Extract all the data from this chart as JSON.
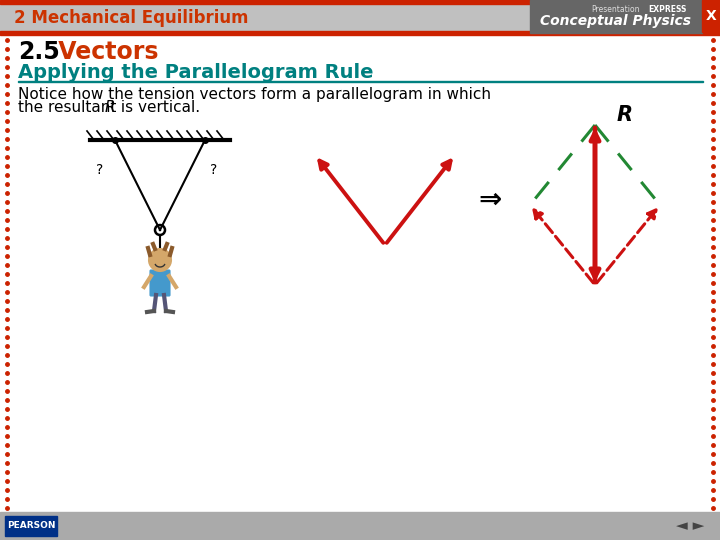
{
  "bg_color": "#f0f0f0",
  "slide_bg": "#ffffff",
  "header_bg": "#c0c0c0",
  "header_text": "2 Mechanical Equilibrium",
  "header_text_color": "#cc3300",
  "header_red_line_color": "#cc2200",
  "cp_box_color": "#666666",
  "title_25": "2.5",
  "title_vectors": " Vectors",
  "title_25_color": "#000000",
  "title_vectors_color": "#cc3300",
  "subtitle": "Applying the Parallelogram Rule",
  "subtitle_color": "#008080",
  "body_line1": "Notice how the tension vectors form a parallelogram in which",
  "body_line2": "the resultant ",
  "body_line2b": "R",
  "body_line2c": " is vertical.",
  "body_text_color": "#000000",
  "border_dot_color": "#cc2200",
  "footer_bg": "#aaaaaa",
  "pearson_text": "PEARSON",
  "red": "#cc1111",
  "green_dashed": "#228833",
  "arrow_lw": 2.8,
  "dashed_lw": 2.2
}
